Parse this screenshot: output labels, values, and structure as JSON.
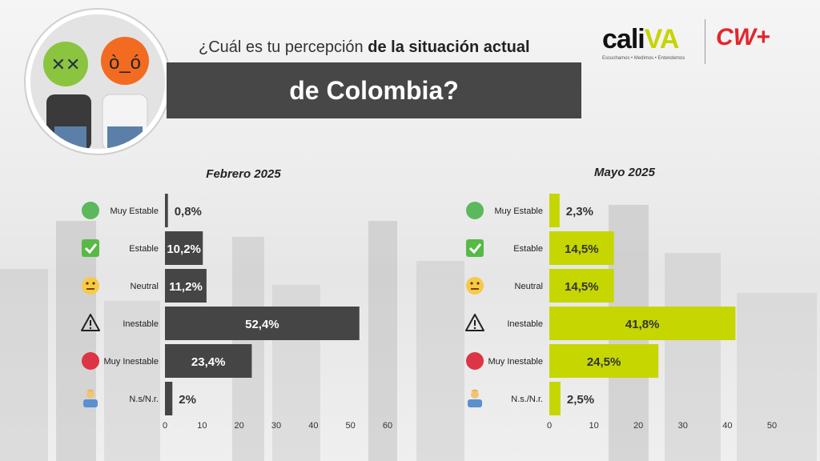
{
  "title": {
    "prefix": "¿Cuál es tu percepción ",
    "emphasis": "de la situación actual",
    "line2": "de Colombia?"
  },
  "logos": {
    "caliva_name_a": "cali",
    "caliva_name_b": "VA",
    "caliva_tagline": "Escuchamos • Medimos • Entendemos",
    "cw": "CW+"
  },
  "colors": {
    "feb_bar": "#454545",
    "may_bar": "#c5d600",
    "muy_estable": "#5cb85c",
    "muy_inestable": "#dc3545"
  },
  "chart_data": [
    {
      "type": "bar",
      "orientation": "horizontal",
      "title": "Febrero 2025",
      "categories": [
        "Muy Estable",
        "Estable",
        "Neutral",
        "Inestable",
        "Muy Inestable",
        "N.s/N.r."
      ],
      "category_icons": [
        "green-circle-icon",
        "check-box-icon",
        "neutral-face-icon",
        "warning-triangle-icon",
        "red-circle-icon",
        "person-shrug-icon"
      ],
      "values": [
        0.8,
        10.2,
        11.2,
        52.4,
        23.4,
        2
      ],
      "data_labels": [
        "0,8%",
        "10,2%",
        "11,2%",
        "52,4%",
        "23,4%",
        "2%"
      ],
      "xlim": [
        0,
        60
      ],
      "ticks": [
        0,
        10,
        20,
        30,
        40,
        50,
        60
      ],
      "grid": false
    },
    {
      "type": "bar",
      "orientation": "horizontal",
      "title": "Mayo 2025",
      "categories": [
        "Muy Estable",
        "Estable",
        "Neutral",
        "Inestable",
        "Muy Inestable",
        "N.s./N.r."
      ],
      "category_icons": [
        "green-circle-icon",
        "check-box-icon",
        "neutral-face-icon",
        "warning-triangle-icon",
        "red-circle-icon",
        "person-shrug-icon"
      ],
      "values": [
        2.3,
        14.5,
        14.5,
        41.8,
        24.5,
        2.5
      ],
      "data_labels": [
        "2,3%",
        "14,5%",
        "14,5%",
        "41,8%",
        "24,5%",
        "2,5%"
      ],
      "xlim": [
        0,
        50
      ],
      "ticks": [
        0,
        10,
        20,
        30,
        40,
        50
      ],
      "grid": false
    }
  ]
}
